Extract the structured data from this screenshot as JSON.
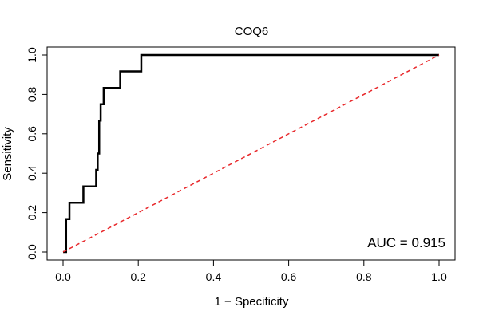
{
  "chart_data": {
    "type": "line",
    "title": "COQ6",
    "xlabel": "1 − Specificity",
    "ylabel": "Sensitivity",
    "xlim": [
      0,
      1
    ],
    "ylim": [
      0,
      1
    ],
    "grid": false,
    "x_ticks": [
      "0.0",
      "0.2",
      "0.4",
      "0.6",
      "0.8",
      "1.0"
    ],
    "y_ticks": [
      "0.0",
      "0.2",
      "0.4",
      "0.6",
      "0.8",
      "1.0"
    ],
    "series": [
      {
        "name": "ROC curve",
        "color": "#000000",
        "style": "step",
        "x": [
          0.0,
          0.0,
          0.008,
          0.008,
          0.017,
          0.017,
          0.054,
          0.054,
          0.088,
          0.088,
          0.092,
          0.092,
          0.096,
          0.096,
          0.1,
          0.1,
          0.108,
          0.108,
          0.152,
          0.152,
          0.208,
          0.208,
          1.0
        ],
        "y": [
          0.0,
          0.0,
          0.0,
          0.167,
          0.167,
          0.25,
          0.25,
          0.333,
          0.333,
          0.417,
          0.417,
          0.5,
          0.5,
          0.667,
          0.667,
          0.75,
          0.75,
          0.833,
          0.833,
          0.917,
          0.917,
          1.0,
          1.0
        ]
      },
      {
        "name": "Reference diagonal",
        "color": "#e8282b",
        "style": "dashed",
        "x": [
          0,
          1
        ],
        "y": [
          0,
          1
        ]
      }
    ],
    "annotation": "AUC = 0.915"
  }
}
